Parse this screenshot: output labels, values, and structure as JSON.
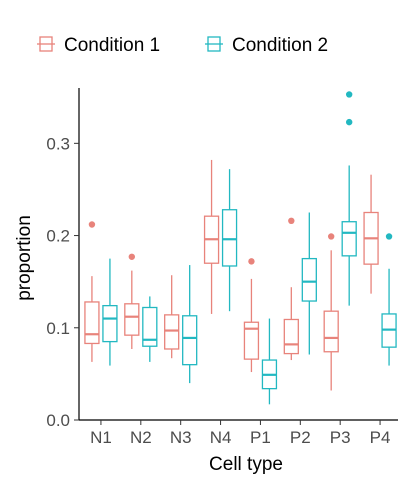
{
  "chart_data": {
    "type": "boxplot",
    "title": "",
    "xlabel": "Cell type",
    "ylabel": "proportion",
    "ylim": [
      0.0,
      0.36
    ],
    "yticks": [
      0.0,
      0.1,
      0.2,
      0.3
    ],
    "ytick_labels": [
      "0.0",
      "0.1",
      "0.2",
      "0.3"
    ],
    "categories": [
      "N1",
      "N2",
      "N3",
      "N4",
      "P1",
      "P2",
      "P3",
      "P4"
    ],
    "legend_position": "top",
    "grid": false,
    "series": [
      {
        "name": "Condition 1",
        "color": "#E8837B",
        "boxes": [
          {
            "category": "N1",
            "min": 0.063,
            "q1": 0.083,
            "median": 0.093,
            "q3": 0.128,
            "max": 0.156,
            "outliers": [
              0.212
            ]
          },
          {
            "category": "N2",
            "min": 0.077,
            "q1": 0.092,
            "median": 0.112,
            "q3": 0.126,
            "max": 0.162,
            "outliers": [
              0.177
            ]
          },
          {
            "category": "N3",
            "min": 0.067,
            "q1": 0.077,
            "median": 0.097,
            "q3": 0.114,
            "max": 0.157,
            "outliers": []
          },
          {
            "category": "N4",
            "min": 0.115,
            "q1": 0.17,
            "median": 0.196,
            "q3": 0.221,
            "max": 0.282,
            "outliers": []
          },
          {
            "category": "P1",
            "min": 0.052,
            "q1": 0.066,
            "median": 0.099,
            "q3": 0.106,
            "max": 0.153,
            "outliers": [
              0.172
            ]
          },
          {
            "category": "P2",
            "min": 0.065,
            "q1": 0.072,
            "median": 0.082,
            "q3": 0.109,
            "max": 0.144,
            "outliers": [
              0.216
            ]
          },
          {
            "category": "P3",
            "min": 0.032,
            "q1": 0.074,
            "median": 0.089,
            "q3": 0.118,
            "max": 0.184,
            "outliers": [
              0.199
            ]
          },
          {
            "category": "P4",
            "min": 0.137,
            "q1": 0.169,
            "median": 0.197,
            "q3": 0.225,
            "max": 0.266,
            "outliers": []
          }
        ]
      },
      {
        "name": "Condition 2",
        "color": "#22B8C1",
        "boxes": [
          {
            "category": "N1",
            "min": 0.059,
            "q1": 0.085,
            "median": 0.11,
            "q3": 0.124,
            "max": 0.175,
            "outliers": []
          },
          {
            "category": "N2",
            "min": 0.063,
            "q1": 0.08,
            "median": 0.087,
            "q3": 0.122,
            "max": 0.134,
            "outliers": []
          },
          {
            "category": "N3",
            "min": 0.04,
            "q1": 0.06,
            "median": 0.089,
            "q3": 0.113,
            "max": 0.168,
            "outliers": []
          },
          {
            "category": "N4",
            "min": 0.118,
            "q1": 0.167,
            "median": 0.196,
            "q3": 0.228,
            "max": 0.272,
            "outliers": []
          },
          {
            "category": "P1",
            "min": 0.017,
            "q1": 0.034,
            "median": 0.049,
            "q3": 0.065,
            "max": 0.11,
            "outliers": []
          },
          {
            "category": "P2",
            "min": 0.071,
            "q1": 0.129,
            "median": 0.15,
            "q3": 0.175,
            "max": 0.225,
            "outliers": []
          },
          {
            "category": "P3",
            "min": 0.124,
            "q1": 0.178,
            "median": 0.203,
            "q3": 0.215,
            "max": 0.276,
            "outliers": [
              0.323,
              0.353
            ]
          },
          {
            "category": "P4",
            "min": 0.059,
            "q1": 0.079,
            "median": 0.098,
            "q3": 0.115,
            "max": 0.164,
            "outliers": [
              0.199
            ]
          }
        ]
      }
    ]
  }
}
